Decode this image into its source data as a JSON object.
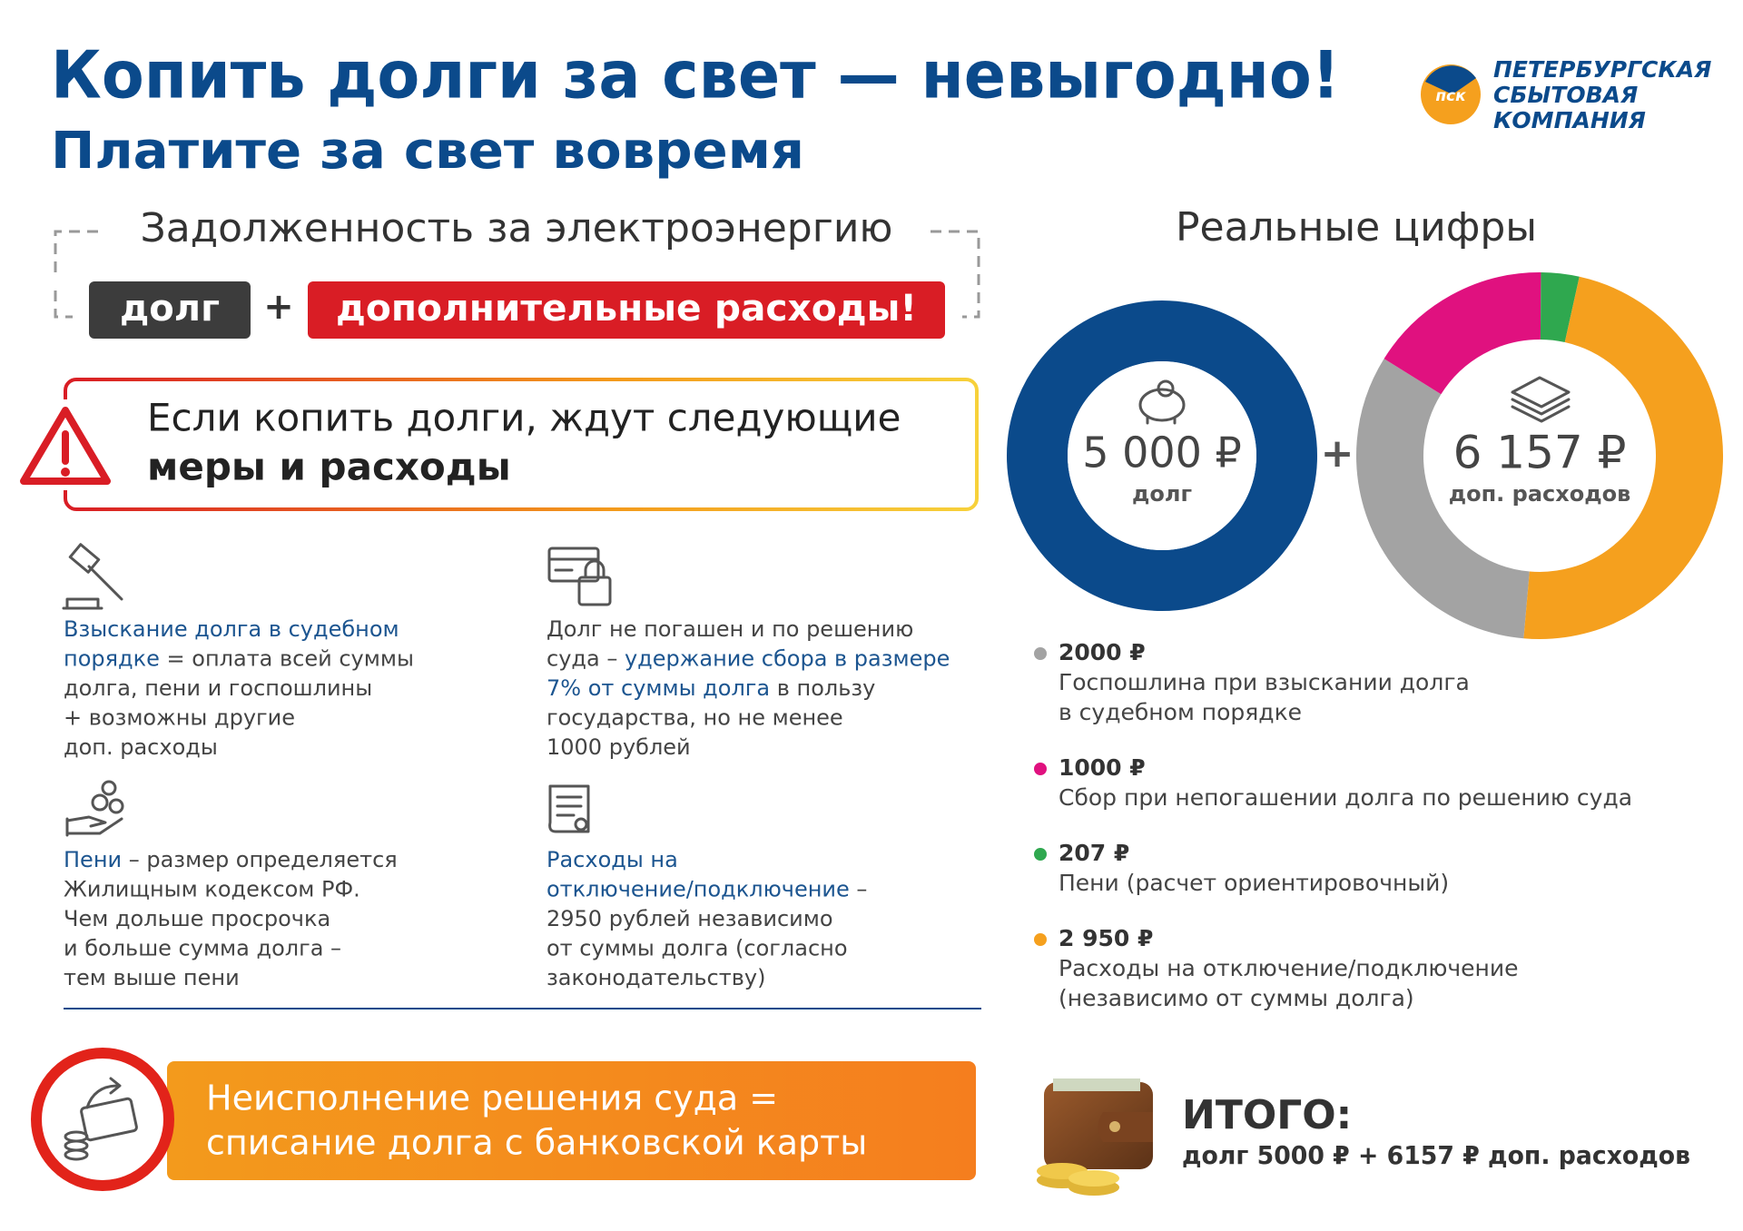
{
  "header": {
    "title": "Копить долги за свет — невыгодно!",
    "subtitle": "Платите за свет вовремя"
  },
  "logo": {
    "abbr": "пск",
    "lines": [
      "ПЕТЕРБУРГСКАЯ",
      "СБЫТОВАЯ",
      "КОМПАНИЯ"
    ]
  },
  "formula": {
    "title": "Задолженность за электроэнергию",
    "debt": "долг",
    "plus": "+",
    "extra": "дополнительные расходы!"
  },
  "warning": {
    "lines": [
      "Если копить долги, ждут следующие",
      "меры и расходы"
    ]
  },
  "measures": [
    {
      "lines": [
        [
          {
            "text": "Взыскание долга в судебном",
            "accent": true
          }
        ],
        [
          {
            "text": "порядке",
            "accent": true
          },
          " = оплата всей суммы"
        ],
        [
          "долга, пени и госпошлины"
        ],
        [
          "+ возможны другие"
        ],
        [
          "доп. расходы"
        ]
      ]
    },
    {
      "lines": [
        [
          "Долг не погашен и по решению"
        ],
        [
          "суда – ",
          {
            "text": "удержание сбора в размере",
            "accent": true
          }
        ],
        [
          {
            "text": "7% от суммы долга",
            "accent": true
          },
          " в пользу"
        ],
        [
          "государства, но не менее"
        ],
        [
          "1000 рублей"
        ]
      ]
    },
    {
      "lines": [
        [
          {
            "text": "Пени",
            "accent": true
          },
          " – размер определяется"
        ],
        [
          "Жилищным кодексом РФ."
        ],
        [
          "Чем дольше просрочка"
        ],
        [
          "и больше сумма долга –"
        ],
        [
          "тем выше пени"
        ]
      ]
    },
    {
      "lines": [
        [
          {
            "text": "Расходы на",
            "accent": true
          }
        ],
        [
          {
            "text": "отключение/подключение",
            "accent": true
          },
          " –"
        ],
        [
          "2950 рублей независимо"
        ],
        [
          "от суммы долга (согласно"
        ],
        [
          "законодательству)"
        ]
      ]
    }
  ],
  "banner": {
    "lines": [
      "Неисполнение решения суда =",
      "списание долга с банковской карты"
    ]
  },
  "real_figures": {
    "title": "Реальные цифры",
    "plus": "+",
    "debt": {
      "value": 5000,
      "value_label": "5 000 ₽",
      "caption": "долг",
      "color": "#0b4a8b"
    },
    "extra": {
      "label": "6 157 ₽",
      "caption": "доп. расходов",
      "items": [
        {
          "value": 2000,
          "value_label": "2000 ₽",
          "color": "#a3a3a3",
          "lines": [
            "Госпошлина при взыскании долга",
            "в судебном порядке"
          ]
        },
        {
          "value": 1000,
          "value_label": "1000 ₽",
          "color": "#e0117f",
          "lines": [
            "Сбор при непогашении долга по решению суда"
          ]
        },
        {
          "value": 207,
          "value_label": "207 ₽",
          "color": "#2fa84f",
          "lines": [
            "Пени (расчет ориентировочный)"
          ]
        },
        {
          "value": 2950,
          "value_label": "2 950 ₽",
          "color": "#f5a01e",
          "lines": [
            "Расходы на отключение/подключение",
            "(независимо от суммы долга)"
          ]
        }
      ]
    }
  },
  "total": {
    "title": "ИТОГО:",
    "text": "долг 5000 ₽ + 6157 ₽ доп. расходов"
  }
}
